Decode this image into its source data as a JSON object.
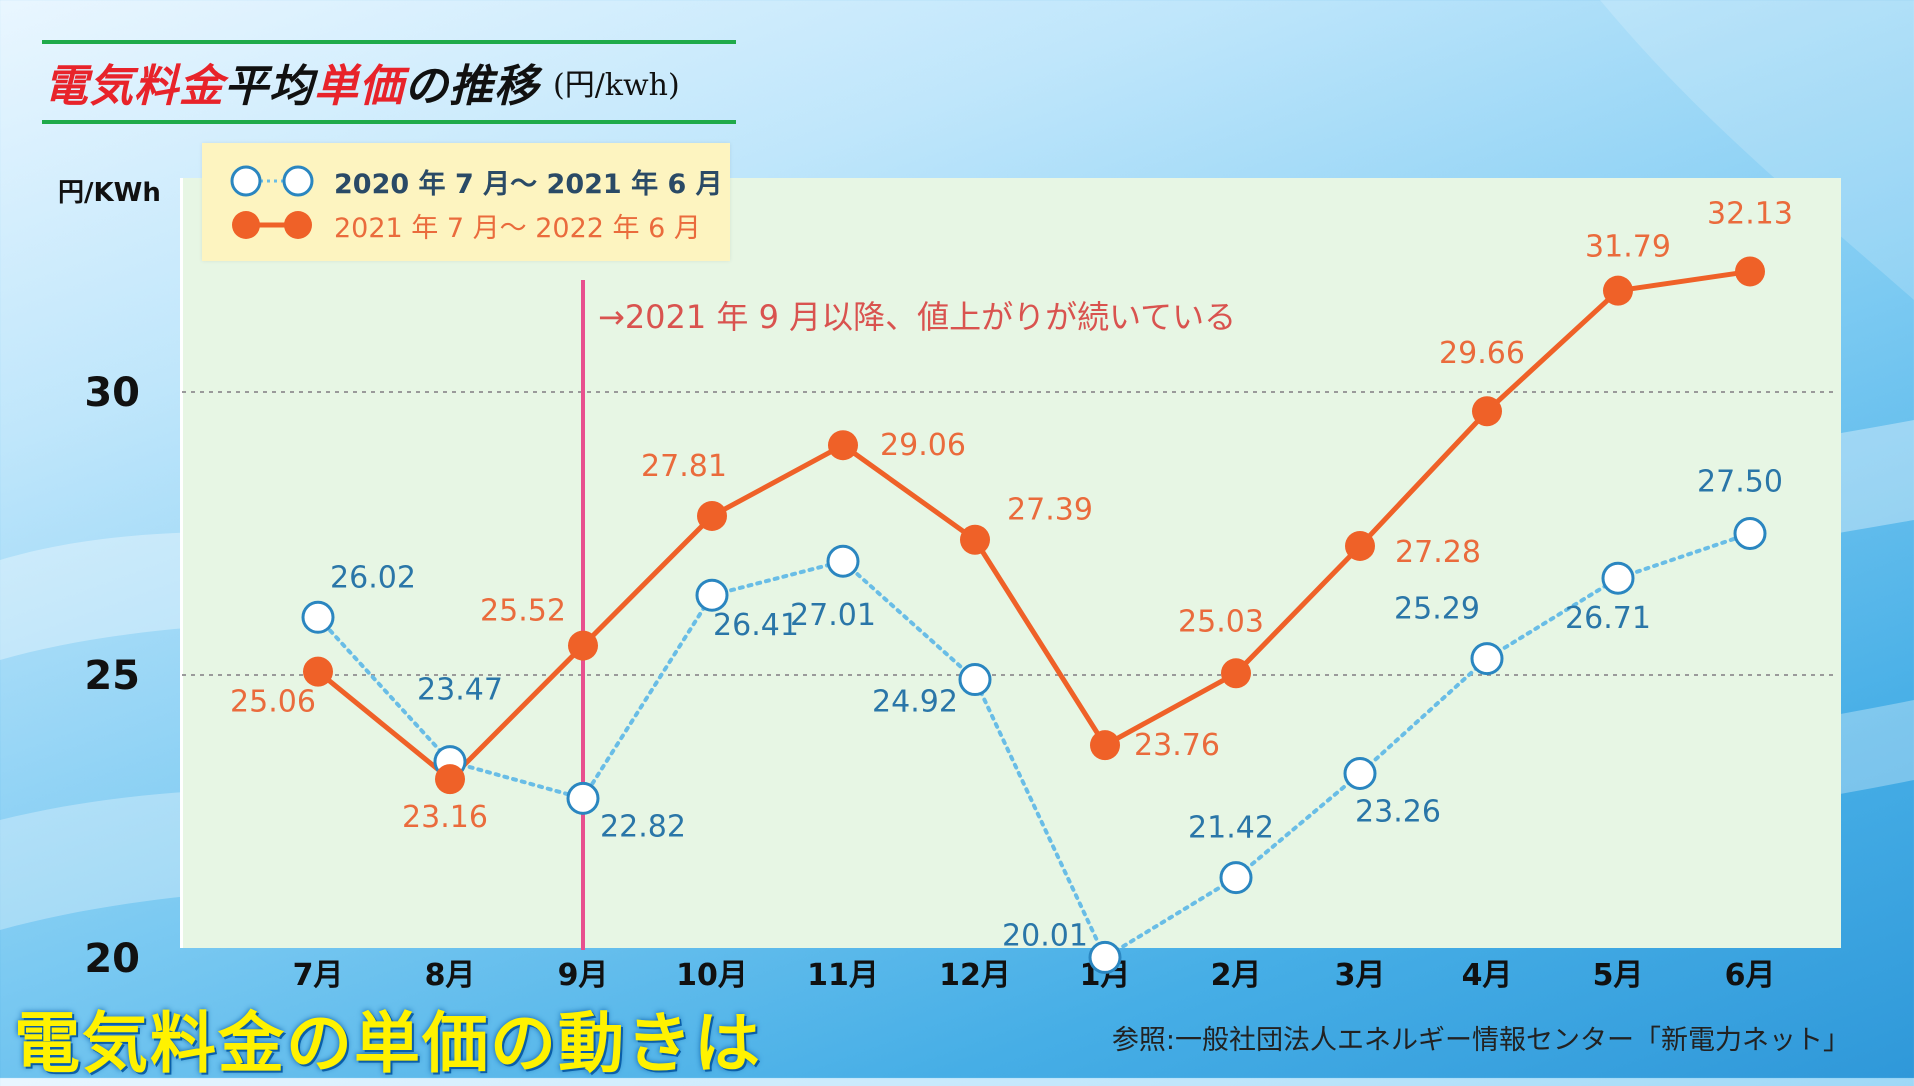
{
  "title": {
    "red1": "電気料金",
    "black1": "平均",
    "red2": "単価",
    "black2": "の推移",
    "unit": "(円/kwh)"
  },
  "y_unit": "円/KWh",
  "annotation": "→2021 年 9 月以降、値上がりが続いている",
  "bottom_title": "電気料金の単価の動きは",
  "source": "参照:一般社団法人エネルギー情報センター「新電力ネット」",
  "colors": {
    "orange": "#ef6128",
    "orange_text": "#ea6b3c",
    "blue": "#69bde6",
    "blue_text": "#2a76a8",
    "pink_line": "#e8508e",
    "plot_bg": "#e7f6e4"
  },
  "chart_data": {
    "type": "line",
    "categories": [
      "7月",
      "8月",
      "9月",
      "10月",
      "11月",
      "12月",
      "1月",
      "2月",
      "3月",
      "4月",
      "5月",
      "6月"
    ],
    "ylim": [
      20,
      32
    ],
    "yticks": [
      20,
      25,
      30
    ],
    "grid": "dashed horizontal at 25 and 30",
    "legend_position": "top-left",
    "series": [
      {
        "name": "2020 年 7 月～ 2021 年 6 月",
        "style": "dotted-hollow",
        "values": [
          26.02,
          23.47,
          22.82,
          26.41,
          27.01,
          24.92,
          20.01,
          21.42,
          23.26,
          25.29,
          26.71,
          27.5
        ],
        "labels": [
          "26.02",
          "23.47",
          "22.82",
          "26.41",
          "27.01",
          "24.92",
          "20.01",
          "21.42",
          "23.26",
          "25.29",
          "26.71",
          "27.50"
        ]
      },
      {
        "name": "2021 年 7 月～ 2022 年 6 月",
        "style": "solid-filled",
        "values": [
          25.06,
          23.16,
          25.52,
          27.81,
          29.06,
          27.39,
          23.76,
          25.03,
          27.28,
          29.66,
          31.79,
          32.13
        ],
        "labels": [
          "25.06",
          "23.16",
          "25.52",
          "27.81",
          "29.06",
          "27.39",
          "23.76",
          "25.03",
          "27.28",
          "29.66",
          "31.79",
          "32.13"
        ]
      }
    ],
    "highlight_category": "9月"
  }
}
